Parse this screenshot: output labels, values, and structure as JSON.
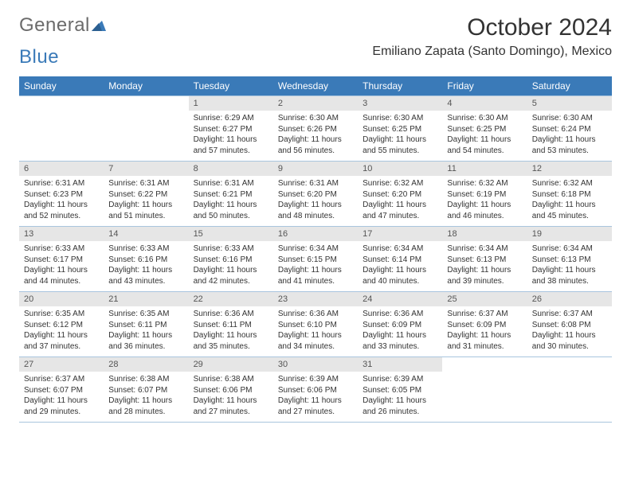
{
  "logo": {
    "part1": "General",
    "part2": "Blue"
  },
  "title": "October 2024",
  "location": "Emiliano Zapata (Santo Domingo), Mexico",
  "colors": {
    "header_bg": "#3a7ab8",
    "header_text": "#ffffff",
    "daynum_bg": "#e6e6e6",
    "rule": "#a9c5de",
    "body_text": "#333333",
    "logo_gray": "#6b6b6b"
  },
  "day_names": [
    "Sunday",
    "Monday",
    "Tuesday",
    "Wednesday",
    "Thursday",
    "Friday",
    "Saturday"
  ],
  "weeks": [
    [
      {
        "n": "",
        "sr": "",
        "ss": "",
        "dl": ""
      },
      {
        "n": "",
        "sr": "",
        "ss": "",
        "dl": ""
      },
      {
        "n": "1",
        "sr": "Sunrise: 6:29 AM",
        "ss": "Sunset: 6:27 PM",
        "dl": "Daylight: 11 hours and 57 minutes."
      },
      {
        "n": "2",
        "sr": "Sunrise: 6:30 AM",
        "ss": "Sunset: 6:26 PM",
        "dl": "Daylight: 11 hours and 56 minutes."
      },
      {
        "n": "3",
        "sr": "Sunrise: 6:30 AM",
        "ss": "Sunset: 6:25 PM",
        "dl": "Daylight: 11 hours and 55 minutes."
      },
      {
        "n": "4",
        "sr": "Sunrise: 6:30 AM",
        "ss": "Sunset: 6:25 PM",
        "dl": "Daylight: 11 hours and 54 minutes."
      },
      {
        "n": "5",
        "sr": "Sunrise: 6:30 AM",
        "ss": "Sunset: 6:24 PM",
        "dl": "Daylight: 11 hours and 53 minutes."
      }
    ],
    [
      {
        "n": "6",
        "sr": "Sunrise: 6:31 AM",
        "ss": "Sunset: 6:23 PM",
        "dl": "Daylight: 11 hours and 52 minutes."
      },
      {
        "n": "7",
        "sr": "Sunrise: 6:31 AM",
        "ss": "Sunset: 6:22 PM",
        "dl": "Daylight: 11 hours and 51 minutes."
      },
      {
        "n": "8",
        "sr": "Sunrise: 6:31 AM",
        "ss": "Sunset: 6:21 PM",
        "dl": "Daylight: 11 hours and 50 minutes."
      },
      {
        "n": "9",
        "sr": "Sunrise: 6:31 AM",
        "ss": "Sunset: 6:20 PM",
        "dl": "Daylight: 11 hours and 48 minutes."
      },
      {
        "n": "10",
        "sr": "Sunrise: 6:32 AM",
        "ss": "Sunset: 6:20 PM",
        "dl": "Daylight: 11 hours and 47 minutes."
      },
      {
        "n": "11",
        "sr": "Sunrise: 6:32 AM",
        "ss": "Sunset: 6:19 PM",
        "dl": "Daylight: 11 hours and 46 minutes."
      },
      {
        "n": "12",
        "sr": "Sunrise: 6:32 AM",
        "ss": "Sunset: 6:18 PM",
        "dl": "Daylight: 11 hours and 45 minutes."
      }
    ],
    [
      {
        "n": "13",
        "sr": "Sunrise: 6:33 AM",
        "ss": "Sunset: 6:17 PM",
        "dl": "Daylight: 11 hours and 44 minutes."
      },
      {
        "n": "14",
        "sr": "Sunrise: 6:33 AM",
        "ss": "Sunset: 6:16 PM",
        "dl": "Daylight: 11 hours and 43 minutes."
      },
      {
        "n": "15",
        "sr": "Sunrise: 6:33 AM",
        "ss": "Sunset: 6:16 PM",
        "dl": "Daylight: 11 hours and 42 minutes."
      },
      {
        "n": "16",
        "sr": "Sunrise: 6:34 AM",
        "ss": "Sunset: 6:15 PM",
        "dl": "Daylight: 11 hours and 41 minutes."
      },
      {
        "n": "17",
        "sr": "Sunrise: 6:34 AM",
        "ss": "Sunset: 6:14 PM",
        "dl": "Daylight: 11 hours and 40 minutes."
      },
      {
        "n": "18",
        "sr": "Sunrise: 6:34 AM",
        "ss": "Sunset: 6:13 PM",
        "dl": "Daylight: 11 hours and 39 minutes."
      },
      {
        "n": "19",
        "sr": "Sunrise: 6:34 AM",
        "ss": "Sunset: 6:13 PM",
        "dl": "Daylight: 11 hours and 38 minutes."
      }
    ],
    [
      {
        "n": "20",
        "sr": "Sunrise: 6:35 AM",
        "ss": "Sunset: 6:12 PM",
        "dl": "Daylight: 11 hours and 37 minutes."
      },
      {
        "n": "21",
        "sr": "Sunrise: 6:35 AM",
        "ss": "Sunset: 6:11 PM",
        "dl": "Daylight: 11 hours and 36 minutes."
      },
      {
        "n": "22",
        "sr": "Sunrise: 6:36 AM",
        "ss": "Sunset: 6:11 PM",
        "dl": "Daylight: 11 hours and 35 minutes."
      },
      {
        "n": "23",
        "sr": "Sunrise: 6:36 AM",
        "ss": "Sunset: 6:10 PM",
        "dl": "Daylight: 11 hours and 34 minutes."
      },
      {
        "n": "24",
        "sr": "Sunrise: 6:36 AM",
        "ss": "Sunset: 6:09 PM",
        "dl": "Daylight: 11 hours and 33 minutes."
      },
      {
        "n": "25",
        "sr": "Sunrise: 6:37 AM",
        "ss": "Sunset: 6:09 PM",
        "dl": "Daylight: 11 hours and 31 minutes."
      },
      {
        "n": "26",
        "sr": "Sunrise: 6:37 AM",
        "ss": "Sunset: 6:08 PM",
        "dl": "Daylight: 11 hours and 30 minutes."
      }
    ],
    [
      {
        "n": "27",
        "sr": "Sunrise: 6:37 AM",
        "ss": "Sunset: 6:07 PM",
        "dl": "Daylight: 11 hours and 29 minutes."
      },
      {
        "n": "28",
        "sr": "Sunrise: 6:38 AM",
        "ss": "Sunset: 6:07 PM",
        "dl": "Daylight: 11 hours and 28 minutes."
      },
      {
        "n": "29",
        "sr": "Sunrise: 6:38 AM",
        "ss": "Sunset: 6:06 PM",
        "dl": "Daylight: 11 hours and 27 minutes."
      },
      {
        "n": "30",
        "sr": "Sunrise: 6:39 AM",
        "ss": "Sunset: 6:06 PM",
        "dl": "Daylight: 11 hours and 27 minutes."
      },
      {
        "n": "31",
        "sr": "Sunrise: 6:39 AM",
        "ss": "Sunset: 6:05 PM",
        "dl": "Daylight: 11 hours and 26 minutes."
      },
      {
        "n": "",
        "sr": "",
        "ss": "",
        "dl": ""
      },
      {
        "n": "",
        "sr": "",
        "ss": "",
        "dl": ""
      }
    ]
  ]
}
